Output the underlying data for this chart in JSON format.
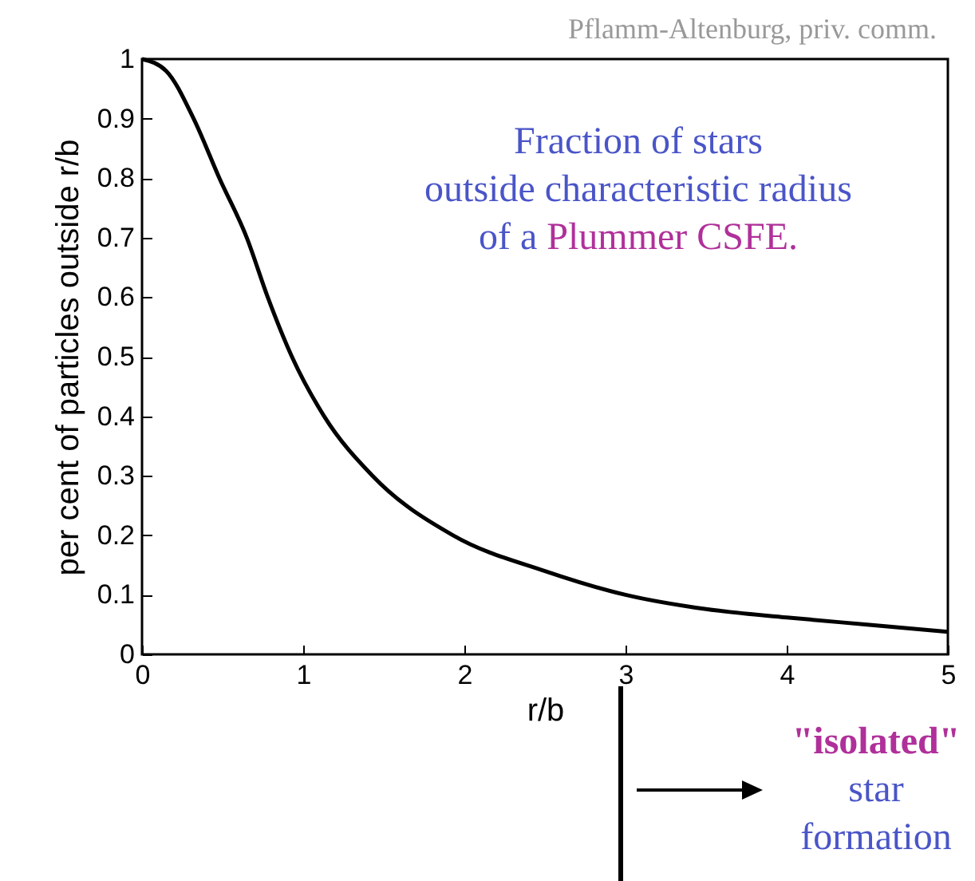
{
  "chart_data": {
    "type": "line",
    "xlabel": "r/b",
    "ylabel": "per cent of particles outside r/b",
    "x": [
      0,
      0.15,
      0.32,
      0.48,
      0.65,
      0.78,
      0.93,
      1.13,
      1.43,
      1.93,
      2.5,
      3,
      3.5,
      4,
      4.5,
      5
    ],
    "series": [
      {
        "color": "#000000",
        "values": [
          1.0,
          0.98,
          0.9,
          0.8,
          0.7,
          0.6,
          0.5,
          0.4,
          0.3,
          0.2,
          0.14,
          0.1,
          0.076,
          0.062,
          0.05,
          0.038
        ]
      }
    ],
    "xlim": [
      0,
      5
    ],
    "xticks": [
      0,
      1,
      2,
      3,
      4,
      5
    ],
    "ylim": [
      0,
      1
    ],
    "yticks": [
      {
        "value": 0,
        "label": "0"
      },
      0.1,
      0.2,
      0.3,
      0.4,
      0.5,
      0.6,
      0.7,
      0.8,
      0.9,
      {
        "value": 1,
        "label": "1"
      }
    ],
    "line_style": "solid",
    "grid": false,
    "legend": false,
    "marker": "none",
    "annotations": [
      "Pflamm-Altenburg, priv. comm.",
      "Fraction of stars",
      "outside characteristic radius",
      "of a",
      "Plummer CSFE.",
      "\"isolated\"",
      "star",
      "formation"
    ]
  }
}
